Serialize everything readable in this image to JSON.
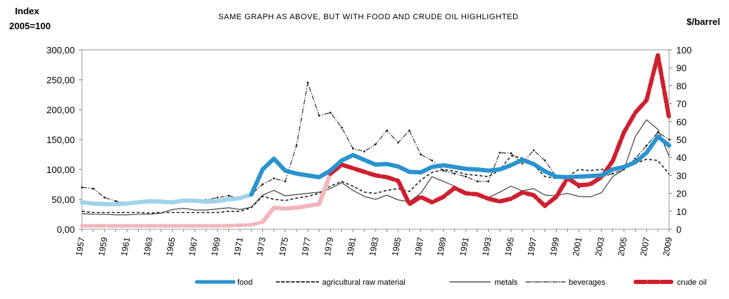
{
  "chart_data": {
    "type": "line",
    "title": "SAME GRAPH AS ABOVE, BUT WITH FOOD AND CRUDE OIL HIGHLIGHTED",
    "ylabel_left_line1": "Index",
    "ylabel_left_line2": "2005=100",
    "ylabel_right": "$/barrel",
    "ylim_left": [
      0,
      300
    ],
    "ylim_right": [
      0,
      100
    ],
    "yticks_left": [
      "0,00",
      "50,00",
      "100,00",
      "150,00",
      "200,00",
      "250,00",
      "300,00"
    ],
    "yticks_right": [
      "0",
      "10",
      "20",
      "30",
      "40",
      "50",
      "60",
      "70",
      "80",
      "90",
      "100"
    ],
    "x_categories": [
      "1957",
      "1959",
      "1961",
      "1963",
      "1965",
      "1967",
      "1969",
      "1971",
      "1973",
      "1975",
      "1977",
      "1979",
      "1981",
      "1983",
      "1985",
      "1987",
      "1989",
      "1991",
      "1993",
      "1995",
      "1997",
      "1999",
      "2001",
      "2003",
      "2005",
      "2007",
      "2009"
    ],
    "years": [
      1957,
      1958,
      1959,
      1960,
      1961,
      1962,
      1963,
      1964,
      1965,
      1966,
      1967,
      1968,
      1969,
      1970,
      1971,
      1972,
      1973,
      1974,
      1975,
      1976,
      1977,
      1978,
      1979,
      1980,
      1981,
      1982,
      1983,
      1984,
      1985,
      1986,
      1987,
      1988,
      1989,
      1990,
      1991,
      1992,
      1993,
      1994,
      1995,
      1996,
      1997,
      1998,
      1999,
      2000,
      2001,
      2002,
      2003,
      2004,
      2005,
      2006,
      2007,
      2008,
      2009
    ],
    "series": [
      {
        "name": "food",
        "axis": "left",
        "values": [
          45,
          43,
          42,
          42,
          43,
          45,
          47,
          46,
          45,
          48,
          48,
          46,
          47,
          50,
          52,
          58,
          100,
          118,
          98,
          93,
          90,
          87,
          98,
          115,
          124,
          116,
          108,
          109,
          105,
          96,
          95,
          104,
          107,
          104,
          101,
          100,
          98,
          100,
          107,
          116,
          109,
          97,
          88,
          87,
          88,
          89,
          90,
          100,
          104,
          112,
          128,
          155,
          140
        ]
      },
      {
        "name": "agricultural raw material",
        "axis": "left",
        "values": [
          30,
          28,
          28,
          28,
          28,
          28,
          27,
          28,
          28,
          28,
          28,
          28,
          28,
          30,
          30,
          36,
          55,
          50,
          48,
          52,
          55,
          60,
          72,
          80,
          72,
          62,
          60,
          65,
          68,
          63,
          82,
          95,
          100,
          97,
          92,
          90,
          88,
          99,
          123,
          119,
          108,
          88,
          85,
          88,
          100,
          98,
          100,
          102,
          104,
          110,
          117,
          115,
          92
        ]
      },
      {
        "name": "metals",
        "axis": "left",
        "values": [
          26,
          25,
          25,
          24,
          24,
          25,
          25,
          27,
          33,
          35,
          32,
          32,
          34,
          36,
          33,
          37,
          57,
          65,
          56,
          58,
          60,
          62,
          68,
          78,
          65,
          55,
          50,
          57,
          49,
          46,
          60,
          88,
          80,
          72,
          62,
          58,
          53,
          62,
          72,
          64,
          68,
          57,
          56,
          60,
          55,
          54,
          61,
          88,
          100,
          155,
          183,
          167,
          122
        ]
      },
      {
        "name": "beverages",
        "axis": "left",
        "values": [
          70,
          68,
          53,
          47,
          44,
          45,
          49,
          48,
          45,
          47,
          47,
          49,
          53,
          56,
          52,
          58,
          75,
          85,
          80,
          140,
          245,
          190,
          195,
          170,
          135,
          130,
          142,
          165,
          145,
          165,
          125,
          115,
          98,
          93,
          88,
          80,
          80,
          128,
          127,
          110,
          132,
          115,
          88,
          82,
          70,
          78,
          87,
          93,
          100,
          118,
          140,
          162,
          150
        ]
      },
      {
        "name": "crude oil",
        "axis": "right",
        "values": [
          1.9,
          1.9,
          1.9,
          1.9,
          1.9,
          1.9,
          1.9,
          1.9,
          1.9,
          1.9,
          1.9,
          1.9,
          1.9,
          2.0,
          2.2,
          2.5,
          4.0,
          12.0,
          11.5,
          12.0,
          13.0,
          14.0,
          31.0,
          36.0,
          34.0,
          32.0,
          30.0,
          29.0,
          27.0,
          14.0,
          18.0,
          15.0,
          18.0,
          23.0,
          20.0,
          19.5,
          17.0,
          15.5,
          17.0,
          20.5,
          19.0,
          13.0,
          18.0,
          28.5,
          24.5,
          25.0,
          29.0,
          38.0,
          54.0,
          65.0,
          72.0,
          97.0,
          62.0
        ]
      }
    ],
    "legend": [
      {
        "name": "food",
        "label": "food"
      },
      {
        "name": "agricultural raw material",
        "label": "agricultural raw material"
      },
      {
        "name": "metals",
        "label": "metals"
      },
      {
        "name": "beverages",
        "label": "beverages"
      },
      {
        "name": "crude oil",
        "label": "crude oil"
      }
    ],
    "legend_position": "bottom",
    "colors": {
      "food": "#2a93cf",
      "food_early": "#9fd3ec",
      "crude_oil": "#cf1f2e",
      "crude_oil_faded": "#f3b5bb",
      "other": "#222222"
    }
  }
}
